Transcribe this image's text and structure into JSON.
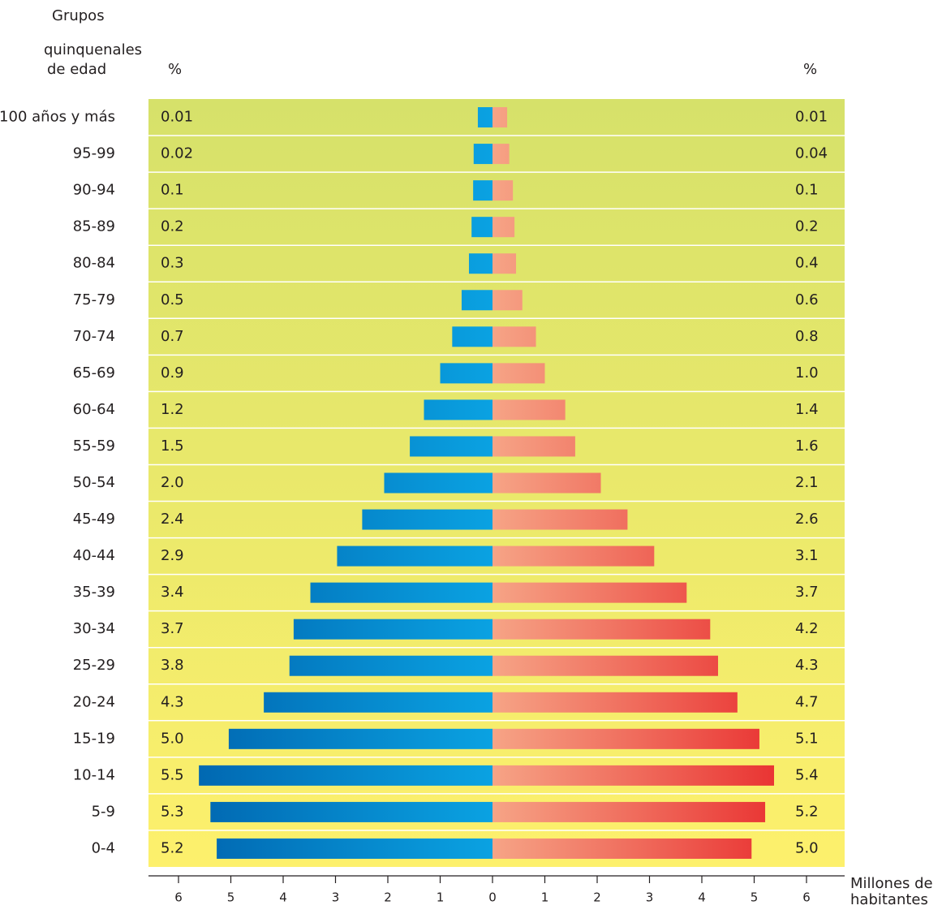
{
  "chart_data": {
    "type": "pyramid",
    "title": [
      "Grupos",
      "quinquenales",
      "de edad"
    ],
    "left_percent_header": "%",
    "right_percent_header": "%",
    "xlabel": [
      "Millones de",
      "habitantes"
    ],
    "categories": [
      "100 años y más",
      "95-99",
      "90-94",
      "85-89",
      "80-84",
      "75-79",
      "70-74",
      "65-69",
      "60-64",
      "55-59",
      "50-54",
      "45-49",
      "40-44",
      "35-39",
      "30-34",
      "25-29",
      "20-24",
      "15-19",
      "10-14",
      "5-9",
      "0-4"
    ],
    "left_percent": [
      "0.01",
      "0.02",
      "0.1",
      "0.2",
      "0.3",
      "0.5",
      "0.7",
      "0.9",
      "1.2",
      "1.5",
      "2.0",
      "2.4",
      "2.9",
      "3.4",
      "3.7",
      "3.8",
      "4.3",
      "5.0",
      "5.5",
      "5.3",
      "5.2"
    ],
    "right_percent": [
      "0.01",
      "0.04",
      "0.1",
      "0.2",
      "0.4",
      "0.6",
      "0.8",
      "1.0",
      "1.4",
      "1.6",
      "2.1",
      "2.6",
      "3.1",
      "3.7",
      "4.2",
      "4.3",
      "4.7",
      "5.1",
      "5.4",
      "5.2",
      "5.0"
    ],
    "series": [
      {
        "side": "left",
        "color": [
          "#0064ae",
          "#0aa2e2"
        ],
        "values": [
          0.28,
          0.36,
          0.37,
          0.4,
          0.45,
          0.59,
          0.77,
          1.0,
          1.31,
          1.58,
          2.07,
          2.49,
          2.97,
          3.48,
          3.8,
          3.88,
          4.37,
          5.04,
          5.61,
          5.39,
          5.27
        ]
      },
      {
        "side": "right",
        "color": [
          "#f6a486",
          "#e8282a"
        ],
        "values": [
          0.28,
          0.32,
          0.39,
          0.42,
          0.45,
          0.57,
          0.83,
          1.0,
          1.39,
          1.58,
          2.07,
          2.58,
          3.09,
          3.71,
          4.16,
          4.31,
          4.68,
          5.1,
          5.38,
          5.21,
          4.95
        ]
      }
    ],
    "xlim": [
      0,
      6
    ],
    "xticks": [
      0,
      1,
      2,
      3,
      4,
      5,
      6
    ],
    "background": [
      "#d6e16a",
      "#fdf06c"
    ]
  }
}
